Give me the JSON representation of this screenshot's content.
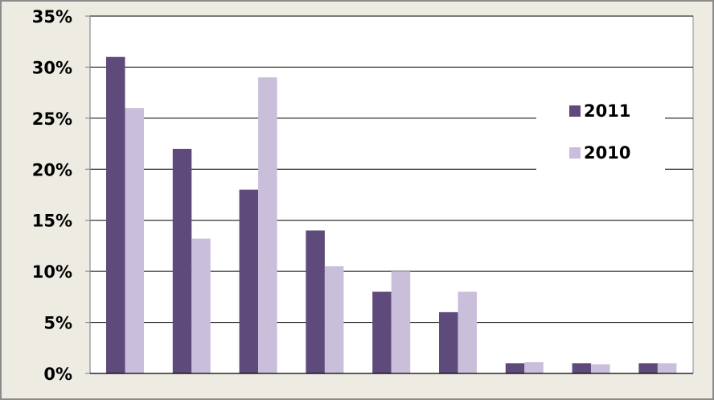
{
  "chart_data": {
    "type": "bar",
    "title": "",
    "xlabel": "",
    "ylabel": "",
    "categories": [
      "",
      "",
      "",
      "",
      "",
      "",
      "",
      "",
      ""
    ],
    "series": [
      {
        "name": "2011",
        "color": "#5f4a7c",
        "values": [
          31,
          22,
          18,
          14,
          8,
          6,
          1,
          1,
          1
        ]
      },
      {
        "name": "2010",
        "color": "#c9bfdb",
        "values": [
          26,
          13.2,
          29,
          10.5,
          10,
          8,
          1.1,
          0.9,
          1
        ]
      }
    ],
    "ylim": [
      0,
      35
    ],
    "y_ticks": [
      0,
      5,
      10,
      15,
      20,
      25,
      30,
      35
    ],
    "y_tick_labels": [
      "0%",
      "5%",
      "10%",
      "15%",
      "20%",
      "25%",
      "30%",
      "35%"
    ],
    "grid": true,
    "legend_position": "right"
  }
}
